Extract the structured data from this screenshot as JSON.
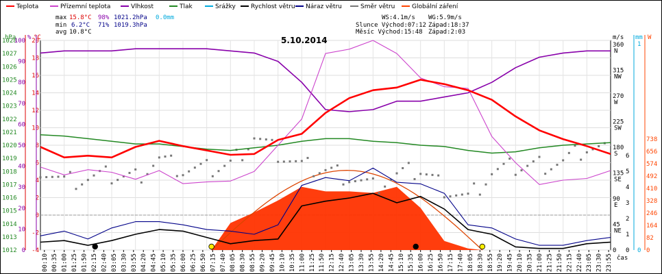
{
  "chart_data": {
    "type": "line",
    "title": "5.10.2014",
    "legend": [
      {
        "name": "Teplota",
        "color": "#ff0000"
      },
      {
        "name": "Přízemní teplota",
        "color": "#cc44cc"
      },
      {
        "name": "Vlhkost",
        "color": "#8800aa"
      },
      {
        "name": "Tlak",
        "color": "#228822"
      },
      {
        "name": "Srážky",
        "color": "#00aadd"
      },
      {
        "name": "Rychlost větru",
        "color": "#000000"
      },
      {
        "name": "Náraz větru",
        "color": "#000088"
      },
      {
        "name": "Směr větru",
        "color": "#777777"
      },
      {
        "name": "Globální záření",
        "color": "#ff4400"
      }
    ],
    "stats": {
      "max": {
        "label": "max",
        "temp": "15.8°C",
        "hum": "98%",
        "press": "1021.2hPa",
        "rain": "0.0mm"
      },
      "min": {
        "label": "min",
        "temp": "6.2°C",
        "hum": "71%",
        "press": "1019.3hPa"
      },
      "avg": {
        "label": "avg",
        "temp": "10.8°C"
      }
    },
    "wind_info": {
      "ws": "WS:4.1m/s",
      "wg": "WG:5.9m/s"
    },
    "sun_info": {
      "rise": "Slunce Východ:07:12",
      "set": "Západ:18:37"
    },
    "moon_info": {
      "rise": "Měsíc  Východ:15:48",
      "set": "Západ:2:03"
    },
    "axes": {
      "hpa_label": "hPa",
      "pct_label": "%",
      "c_label": "°C",
      "ms_label": "m/s",
      "mm_label": "mm",
      "w_label": "W",
      "x_unit": "čas",
      "hpa_ticks": [
        "1028",
        "1027",
        "1026",
        "1025",
        "1024",
        "1023",
        "1022",
        "1021",
        "1020",
        "1019",
        "1018",
        "1017",
        "1016",
        "1015",
        "1014",
        "1013",
        "1012"
      ],
      "pct_ticks": [
        "100",
        "90",
        "80",
        "70",
        "60",
        "50",
        "40",
        "30",
        "20",
        "10",
        "0"
      ],
      "c_ticks": [
        "20",
        "18",
        "16",
        "14",
        "12",
        "10",
        "8",
        "6",
        "4",
        "2",
        "0",
        "-2",
        "-4"
      ],
      "dir_ticks": [
        {
          "deg": "360",
          "lab": "N"
        },
        {
          "deg": "315",
          "lab": "NW"
        },
        {
          "deg": "270",
          "lab": "W"
        },
        {
          "deg": "225",
          "lab": "SW"
        },
        {
          "deg": "180",
          "lab": "S"
        },
        {
          "deg": "135",
          "lab": "SE"
        },
        {
          "deg": "90",
          "lab": "E"
        },
        {
          "deg": "45",
          "lab": "NE"
        },
        {
          "deg": "0",
          "lab": ""
        }
      ],
      "ms_ticks": [
        "6",
        "5",
        "4",
        "3",
        "2",
        "1",
        "0"
      ],
      "mm_ticks": [
        "1",
        "0"
      ],
      "w_ticks": [
        "738",
        "656",
        "574",
        "492",
        "410",
        "328",
        "246",
        "164",
        "82",
        "0"
      ],
      "x_ticks": [
        "00:10",
        "00:35",
        "01:00",
        "01:25",
        "01:50",
        "02:15",
        "02:40",
        "03:05",
        "03:30",
        "03:55",
        "04:20",
        "04:45",
        "05:10",
        "05:35",
        "06:00",
        "06:25",
        "06:50",
        "07:15",
        "07:40",
        "08:05",
        "08:30",
        "08:55",
        "09:20",
        "09:45",
        "10:10",
        "10:35",
        "11:00",
        "11:25",
        "11:50",
        "12:15",
        "12:40",
        "13:05",
        "13:30",
        "13:55",
        "14:20",
        "14:45",
        "15:10",
        "15:35",
        "16:00",
        "16:25",
        "16:50",
        "17:15",
        "17:40",
        "18:05",
        "18:30",
        "18:55",
        "19:20",
        "19:45",
        "20:10",
        "20:35",
        "21:00",
        "21:25",
        "21:50",
        "22:15",
        "22:40",
        "23:05",
        "23:30",
        "23:55"
      ]
    },
    "series": [
      {
        "name": "Teplota",
        "unit": "°C",
        "x": [
          0,
          1,
          2,
          3,
          4,
          5,
          6,
          7,
          8,
          9,
          10,
          11,
          12,
          13,
          14,
          15,
          16,
          17,
          18,
          19,
          20,
          21,
          22,
          23,
          24
        ],
        "values": [
          7.8,
          6.6,
          6.8,
          6.6,
          7.8,
          8.5,
          7.9,
          7.4,
          6.9,
          7.0,
          8.6,
          9.3,
          11.7,
          13.4,
          14.3,
          14.6,
          15.5,
          15.0,
          14.3,
          13.2,
          11.3,
          9.7,
          8.7,
          7.9,
          7.0
        ]
      },
      {
        "name": "Přízemní teplota",
        "unit": "°C",
        "x": [
          0,
          1,
          2,
          3,
          4,
          5,
          6,
          7,
          8,
          9,
          10,
          11,
          12,
          13,
          14,
          15,
          16,
          17,
          18,
          19,
          20,
          21,
          22,
          23,
          24
        ],
        "values": [
          5.5,
          4.6,
          5.2,
          4.9,
          4.1,
          5.1,
          3.6,
          3.8,
          3.9,
          5.0,
          8.0,
          11.0,
          18.5,
          19.0,
          20.0,
          18.5,
          15.7,
          14.7,
          14.5,
          9.0,
          6.0,
          3.5,
          4.0,
          4.2,
          5.1
        ]
      },
      {
        "name": "Vlhkost",
        "unit": "%",
        "x": [
          0,
          1,
          2,
          3,
          4,
          5,
          6,
          7,
          8,
          9,
          10,
          11,
          12,
          13,
          14,
          15,
          16,
          17,
          18,
          19,
          20,
          21,
          22,
          23,
          24
        ],
        "values": [
          94,
          95,
          95,
          95,
          96,
          96,
          96,
          96,
          95,
          94,
          90,
          80,
          67,
          66,
          67,
          71,
          71,
          73,
          75,
          80,
          87,
          92,
          94,
          95,
          95
        ]
      },
      {
        "name": "Tlak",
        "unit": "hPa",
        "x": [
          0,
          1,
          2,
          3,
          4,
          5,
          6,
          7,
          8,
          9,
          10,
          11,
          12,
          13,
          14,
          15,
          16,
          17,
          18,
          19,
          20,
          21,
          22,
          23,
          24
        ],
        "values": [
          1020.8,
          1020.7,
          1020.5,
          1020.3,
          1020.1,
          1020.1,
          1019.9,
          1019.7,
          1019.6,
          1019.8,
          1020.0,
          1020.3,
          1020.5,
          1020.5,
          1020.3,
          1020.2,
          1020.0,
          1019.9,
          1019.6,
          1019.4,
          1019.5,
          1019.8,
          1020.0,
          1020.1,
          1020.2
        ]
      },
      {
        "name": "Rychlost větru",
        "unit": "m/s",
        "x": [
          0,
          1,
          2,
          3,
          4,
          5,
          6,
          7,
          8,
          9,
          10,
          11,
          12,
          13,
          14,
          15,
          16,
          17,
          18,
          19,
          20,
          21,
          22,
          23,
          24
        ],
        "values": [
          0.5,
          0.6,
          0.3,
          0.6,
          1.0,
          1.3,
          1.2,
          0.8,
          0.4,
          0.6,
          0.7,
          2.8,
          3.1,
          3.3,
          3.6,
          3.0,
          3.4,
          2.6,
          1.3,
          1.0,
          0.2,
          0.1,
          0.1,
          0.4,
          0.5
        ]
      },
      {
        "name": "Náraz větru",
        "unit": "m/s",
        "x": [
          0,
          1,
          2,
          3,
          4,
          5,
          6,
          7,
          8,
          9,
          10,
          11,
          12,
          13,
          14,
          15,
          16,
          17,
          18,
          19,
          20,
          21,
          22,
          23,
          24
        ],
        "values": [
          0.9,
          1.2,
          0.7,
          1.4,
          1.8,
          1.8,
          1.6,
          1.3,
          1.2,
          1.0,
          1.6,
          4.1,
          4.6,
          4.4,
          5.2,
          4.3,
          4.2,
          3.6,
          1.6,
          1.4,
          0.7,
          0.3,
          0.3,
          0.6,
          0.8
        ]
      },
      {
        "name": "Směr větru",
        "unit": "°",
        "x": [
          0,
          1,
          2,
          3,
          4,
          5,
          6,
          7,
          8,
          9,
          10,
          11,
          12,
          13,
          14,
          15,
          16,
          17,
          18,
          19,
          20,
          21,
          22,
          23,
          24
        ],
        "values": [
          145,
          120,
          125,
          130,
          128,
          160,
          140,
          140,
          150,
          200,
          170,
          145,
          140,
          130,
          110,
          130,
          140,
          110,
          90,
          135,
          145,
          150,
          155,
          180,
          175
        ]
      },
      {
        "name": "Globální záření",
        "unit": "W",
        "x": [
          7.2,
          8,
          9,
          10,
          11,
          12,
          13,
          14,
          15,
          16,
          17,
          18,
          18.6
        ],
        "values": [
          0,
          180,
          250,
          330,
          420,
          390,
          390,
          380,
          420,
          280,
          60,
          10,
          0
        ]
      }
    ],
    "sun_curve": {
      "rise": 7.2,
      "set": 18.6,
      "peak_w": 530
    },
    "markers": [
      {
        "x": 2.3,
        "type": "moon-set"
      },
      {
        "x": 7.2,
        "type": "sunrise"
      },
      {
        "x": 15.8,
        "type": "moonrise"
      },
      {
        "x": 18.6,
        "type": "sunset"
      }
    ]
  }
}
